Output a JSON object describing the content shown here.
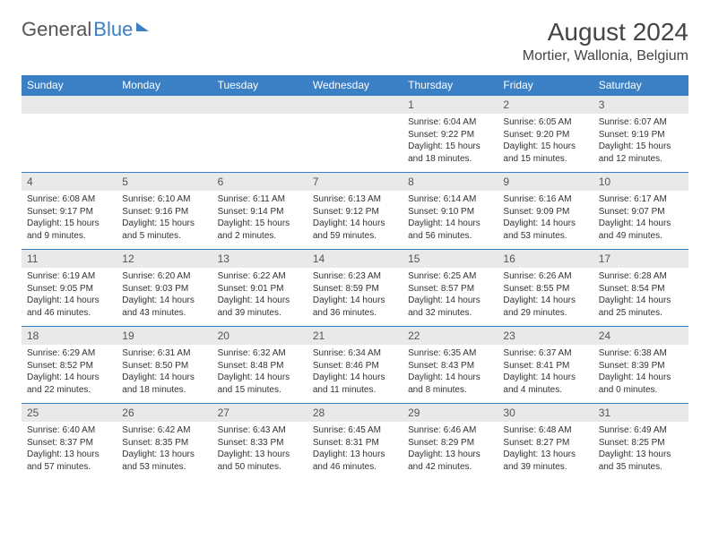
{
  "brand": {
    "part1": "General",
    "part2": "Blue"
  },
  "title": "August 2024",
  "location": "Mortier, Wallonia, Belgium",
  "colors": {
    "header_bg": "#3b7fc4",
    "header_text": "#ffffff",
    "daynum_bg": "#e9e9e9",
    "row_border": "#3b7fc4",
    "page_bg": "#ffffff",
    "body_text": "#333333"
  },
  "typography": {
    "title_fontsize": 28,
    "location_fontsize": 16,
    "weekday_fontsize": 12,
    "daynum_fontsize": 12,
    "celltext_fontsize": 10
  },
  "weekdays": [
    "Sunday",
    "Monday",
    "Tuesday",
    "Wednesday",
    "Thursday",
    "Friday",
    "Saturday"
  ],
  "weeks": [
    [
      null,
      null,
      null,
      null,
      {
        "n": "1",
        "sr": "Sunrise: 6:04 AM",
        "ss": "Sunset: 9:22 PM",
        "dl": "Daylight: 15 hours and 18 minutes."
      },
      {
        "n": "2",
        "sr": "Sunrise: 6:05 AM",
        "ss": "Sunset: 9:20 PM",
        "dl": "Daylight: 15 hours and 15 minutes."
      },
      {
        "n": "3",
        "sr": "Sunrise: 6:07 AM",
        "ss": "Sunset: 9:19 PM",
        "dl": "Daylight: 15 hours and 12 minutes."
      }
    ],
    [
      {
        "n": "4",
        "sr": "Sunrise: 6:08 AM",
        "ss": "Sunset: 9:17 PM",
        "dl": "Daylight: 15 hours and 9 minutes."
      },
      {
        "n": "5",
        "sr": "Sunrise: 6:10 AM",
        "ss": "Sunset: 9:16 PM",
        "dl": "Daylight: 15 hours and 5 minutes."
      },
      {
        "n": "6",
        "sr": "Sunrise: 6:11 AM",
        "ss": "Sunset: 9:14 PM",
        "dl": "Daylight: 15 hours and 2 minutes."
      },
      {
        "n": "7",
        "sr": "Sunrise: 6:13 AM",
        "ss": "Sunset: 9:12 PM",
        "dl": "Daylight: 14 hours and 59 minutes."
      },
      {
        "n": "8",
        "sr": "Sunrise: 6:14 AM",
        "ss": "Sunset: 9:10 PM",
        "dl": "Daylight: 14 hours and 56 minutes."
      },
      {
        "n": "9",
        "sr": "Sunrise: 6:16 AM",
        "ss": "Sunset: 9:09 PM",
        "dl": "Daylight: 14 hours and 53 minutes."
      },
      {
        "n": "10",
        "sr": "Sunrise: 6:17 AM",
        "ss": "Sunset: 9:07 PM",
        "dl": "Daylight: 14 hours and 49 minutes."
      }
    ],
    [
      {
        "n": "11",
        "sr": "Sunrise: 6:19 AM",
        "ss": "Sunset: 9:05 PM",
        "dl": "Daylight: 14 hours and 46 minutes."
      },
      {
        "n": "12",
        "sr": "Sunrise: 6:20 AM",
        "ss": "Sunset: 9:03 PM",
        "dl": "Daylight: 14 hours and 43 minutes."
      },
      {
        "n": "13",
        "sr": "Sunrise: 6:22 AM",
        "ss": "Sunset: 9:01 PM",
        "dl": "Daylight: 14 hours and 39 minutes."
      },
      {
        "n": "14",
        "sr": "Sunrise: 6:23 AM",
        "ss": "Sunset: 8:59 PM",
        "dl": "Daylight: 14 hours and 36 minutes."
      },
      {
        "n": "15",
        "sr": "Sunrise: 6:25 AM",
        "ss": "Sunset: 8:57 PM",
        "dl": "Daylight: 14 hours and 32 minutes."
      },
      {
        "n": "16",
        "sr": "Sunrise: 6:26 AM",
        "ss": "Sunset: 8:55 PM",
        "dl": "Daylight: 14 hours and 29 minutes."
      },
      {
        "n": "17",
        "sr": "Sunrise: 6:28 AM",
        "ss": "Sunset: 8:54 PM",
        "dl": "Daylight: 14 hours and 25 minutes."
      }
    ],
    [
      {
        "n": "18",
        "sr": "Sunrise: 6:29 AM",
        "ss": "Sunset: 8:52 PM",
        "dl": "Daylight: 14 hours and 22 minutes."
      },
      {
        "n": "19",
        "sr": "Sunrise: 6:31 AM",
        "ss": "Sunset: 8:50 PM",
        "dl": "Daylight: 14 hours and 18 minutes."
      },
      {
        "n": "20",
        "sr": "Sunrise: 6:32 AM",
        "ss": "Sunset: 8:48 PM",
        "dl": "Daylight: 14 hours and 15 minutes."
      },
      {
        "n": "21",
        "sr": "Sunrise: 6:34 AM",
        "ss": "Sunset: 8:46 PM",
        "dl": "Daylight: 14 hours and 11 minutes."
      },
      {
        "n": "22",
        "sr": "Sunrise: 6:35 AM",
        "ss": "Sunset: 8:43 PM",
        "dl": "Daylight: 14 hours and 8 minutes."
      },
      {
        "n": "23",
        "sr": "Sunrise: 6:37 AM",
        "ss": "Sunset: 8:41 PM",
        "dl": "Daylight: 14 hours and 4 minutes."
      },
      {
        "n": "24",
        "sr": "Sunrise: 6:38 AM",
        "ss": "Sunset: 8:39 PM",
        "dl": "Daylight: 14 hours and 0 minutes."
      }
    ],
    [
      {
        "n": "25",
        "sr": "Sunrise: 6:40 AM",
        "ss": "Sunset: 8:37 PM",
        "dl": "Daylight: 13 hours and 57 minutes."
      },
      {
        "n": "26",
        "sr": "Sunrise: 6:42 AM",
        "ss": "Sunset: 8:35 PM",
        "dl": "Daylight: 13 hours and 53 minutes."
      },
      {
        "n": "27",
        "sr": "Sunrise: 6:43 AM",
        "ss": "Sunset: 8:33 PM",
        "dl": "Daylight: 13 hours and 50 minutes."
      },
      {
        "n": "28",
        "sr": "Sunrise: 6:45 AM",
        "ss": "Sunset: 8:31 PM",
        "dl": "Daylight: 13 hours and 46 minutes."
      },
      {
        "n": "29",
        "sr": "Sunrise: 6:46 AM",
        "ss": "Sunset: 8:29 PM",
        "dl": "Daylight: 13 hours and 42 minutes."
      },
      {
        "n": "30",
        "sr": "Sunrise: 6:48 AM",
        "ss": "Sunset: 8:27 PM",
        "dl": "Daylight: 13 hours and 39 minutes."
      },
      {
        "n": "31",
        "sr": "Sunrise: 6:49 AM",
        "ss": "Sunset: 8:25 PM",
        "dl": "Daylight: 13 hours and 35 minutes."
      }
    ]
  ]
}
